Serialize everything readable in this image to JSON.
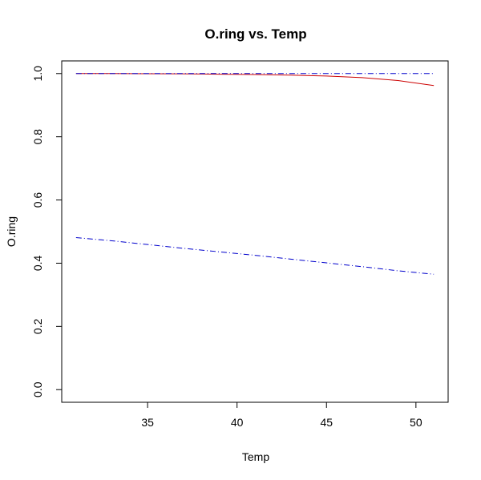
{
  "chart_data": {
    "type": "line",
    "title": "O.ring vs. Temp",
    "xlabel": "Temp",
    "ylabel": "O.ring",
    "xlim": [
      30.2,
      51.8
    ],
    "ylim": [
      -0.04,
      1.04
    ],
    "xticks": [
      "35",
      "40",
      "45",
      "50"
    ],
    "yticks": [
      "0.0",
      "0.2",
      "0.4",
      "0.6",
      "0.8",
      "1.0"
    ],
    "grid": false,
    "legend": "none",
    "series": [
      {
        "color": "#cc0000",
        "style": "solid",
        "x": [
          31,
          33,
          35,
          37,
          39,
          41,
          43,
          45,
          47,
          49,
          51
        ],
        "y": [
          1.0,
          1.0,
          0.9995,
          0.999,
          0.998,
          0.997,
          0.995,
          0.992,
          0.987,
          0.978,
          0.962
        ]
      },
      {
        "color": "#0000cc",
        "style": "dashdot",
        "x": [
          31,
          51
        ],
        "y": [
          1.0,
          1.0
        ]
      },
      {
        "color": "#0000cc",
        "style": "dashdot",
        "x": [
          31,
          33,
          35,
          37,
          39,
          41,
          43,
          45,
          47,
          49,
          51
        ],
        "y": [
          0.481,
          0.471,
          0.459,
          0.447,
          0.436,
          0.425,
          0.413,
          0.401,
          0.389,
          0.376,
          0.365
        ]
      }
    ]
  }
}
